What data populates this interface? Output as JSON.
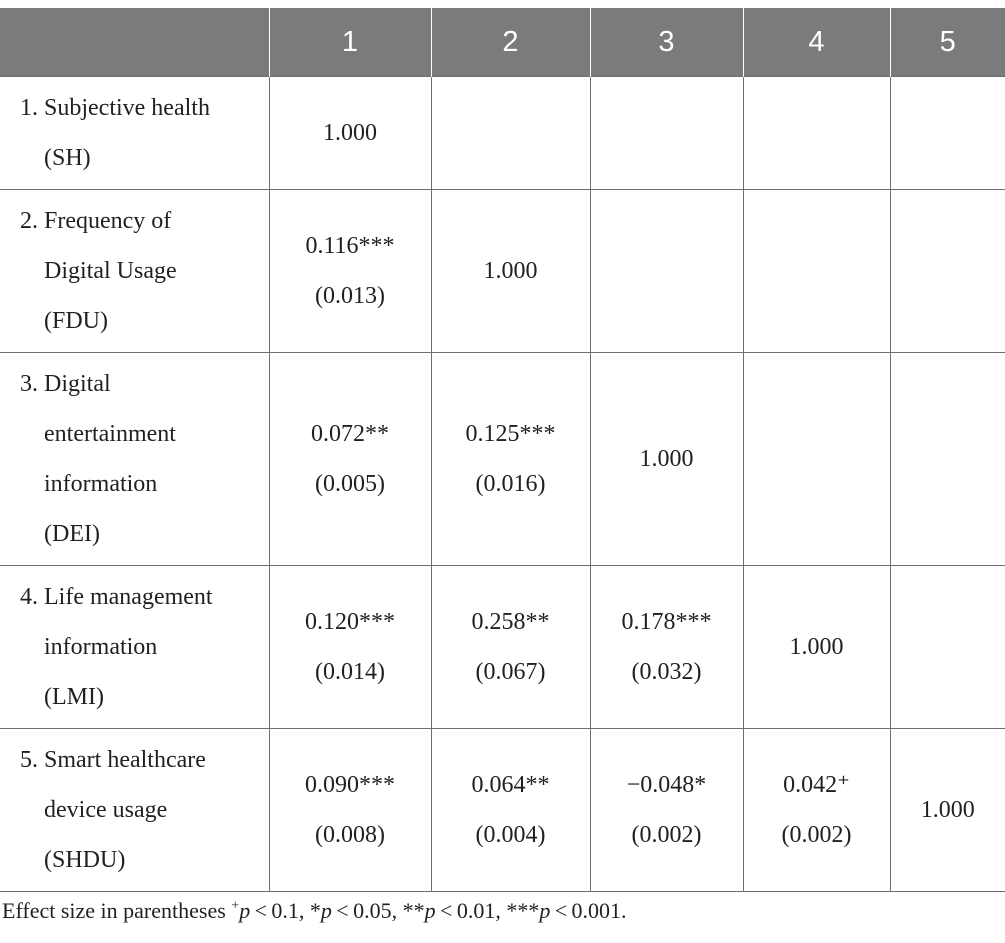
{
  "header": [
    "",
    "1",
    "2",
    "3",
    "4",
    "5"
  ],
  "rows": [
    {
      "num": "1.",
      "label_lines": [
        "Subjective health",
        "(SH)"
      ],
      "cells": [
        {
          "v": "1.000",
          "se": ""
        },
        {
          "v": "",
          "se": ""
        },
        {
          "v": "",
          "se": ""
        },
        {
          "v": "",
          "se": ""
        },
        {
          "v": "",
          "se": ""
        }
      ]
    },
    {
      "num": "2.",
      "label_lines": [
        "Frequency of",
        "Digital Usage",
        "(FDU)"
      ],
      "cells": [
        {
          "v": "0.116***",
          "se": "(0.013)"
        },
        {
          "v": "1.000",
          "se": ""
        },
        {
          "v": "",
          "se": ""
        },
        {
          "v": "",
          "se": ""
        },
        {
          "v": "",
          "se": ""
        }
      ]
    },
    {
      "num": "3.",
      "label_lines": [
        "Digital",
        "entertainment",
        "information",
        "(DEI)"
      ],
      "cells": [
        {
          "v": "0.072**",
          "se": "(0.005)"
        },
        {
          "v": "0.125***",
          "se": "(0.016)"
        },
        {
          "v": "1.000",
          "se": ""
        },
        {
          "v": "",
          "se": ""
        },
        {
          "v": "",
          "se": ""
        }
      ]
    },
    {
      "num": "4.",
      "label_lines": [
        "Life management",
        "information",
        "(LMI)"
      ],
      "cells": [
        {
          "v": "0.120***",
          "se": "(0.014)"
        },
        {
          "v": "0.258**",
          "se": "(0.067)"
        },
        {
          "v": "0.178***",
          "se": "(0.032)"
        },
        {
          "v": "1.000",
          "se": ""
        },
        {
          "v": "",
          "se": ""
        }
      ]
    },
    {
      "num": "5.",
      "label_lines": [
        "Smart healthcare",
        "device usage",
        "(SHDU)"
      ],
      "cells": [
        {
          "v": "0.090***",
          "se": "(0.008)"
        },
        {
          "v": "0.064**",
          "se": "(0.004)"
        },
        {
          "v": "−0.048*",
          "se": "(0.002)"
        },
        {
          "v": "0.042⁺",
          "se": "(0.002)"
        },
        {
          "v": "1.000",
          "se": ""
        }
      ]
    }
  ],
  "note": {
    "prefix": "Effect size in parentheses ",
    "s1_sup": "+",
    "s1_p": "p",
    "s1_rest": " < 0.1, ",
    "s2_star": "*",
    "s2_p": "p",
    "s2_rest": " < 0.05, ",
    "s3_star": "**",
    "s3_p": "p",
    "s3_rest": " < 0.01, ",
    "s4_star": "***",
    "s4_p": "p",
    "s4_rest": " < 0.001."
  }
}
